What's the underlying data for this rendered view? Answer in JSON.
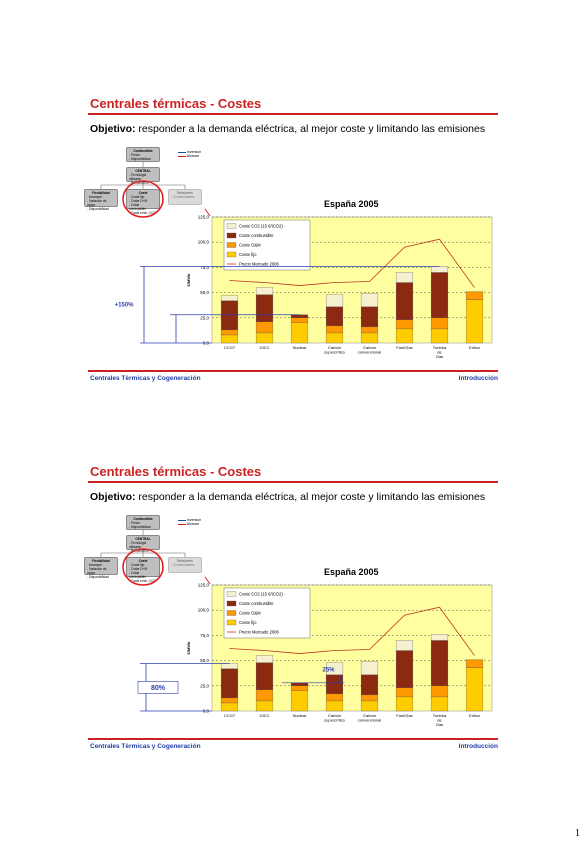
{
  "slides": [
    {
      "title": "Centrales térmicas - Costes",
      "objective_label": "Objetivo:",
      "objective_text": " responder a la demanda eléctrica, al mejor coste y limitando las emisiones",
      "footer_left": "Centrales Térmicas y Cogeneración",
      "footer_right": "Introducción",
      "annotation": "+150%",
      "diagram": {
        "boxes": [
          {
            "title": "Combustible",
            "lines": [
              "- Precio",
              "- Disponibilidad"
            ]
          },
          {
            "title": "CENTRAL",
            "lines": [
              "- Tecnología utilizada",
              "- Rendimiento"
            ]
          },
          {
            "title": "Flexibilidad",
            "lines": [
              "- Arranque",
              "- Variación de carga",
              "- Disponibilidad"
            ]
          },
          {
            "title": "Coste",
            "lines": [
              "- Coste fijo",
              "- Coste O+M",
              "- Coste combustible",
              "- Coste emis. CO2"
            ]
          },
          {
            "title": "Emisiones",
            "lines": [
              "- Contaminantes"
            ]
          }
        ],
        "legend": [
          "Inversión",
          "Alcance"
        ]
      },
      "chart_data": {
        "type": "bar",
        "title": "España 2005",
        "ylabel": "€/MWh",
        "ylim": [
          0,
          125
        ],
        "yticks": [
          "0,0",
          "25,0",
          "50,0",
          "75,0",
          "100,0",
          "125,0"
        ],
        "categories": [
          "CCGT",
          "GICC",
          "Nuclear",
          "Carbón supercrítico",
          "Carbón convencional",
          "Fuel/Gas",
          "Turbina de Gas",
          "Eólico"
        ],
        "series": [
          {
            "name": "Coste CO2 (15 €/tCO2)",
            "color": "#f5f0d0",
            "values": [
              5,
              7,
              0,
              12,
              13,
              10,
              6,
              0
            ]
          },
          {
            "name": "Coste combustible",
            "color": "#8b2a10",
            "values": [
              29,
              27,
              3,
              19,
              20,
              37,
              45,
              0
            ]
          },
          {
            "name": "Coste O&M",
            "color": "#ff9900",
            "values": [
              5,
              11,
              5,
              7,
              6,
              9,
              11,
              8
            ]
          },
          {
            "name": "Coste fijo",
            "color": "#ffcc00",
            "values": [
              8,
              10,
              20,
              10,
              10,
              14,
              14,
              43
            ]
          },
          {
            "name": "Precio Mercado 2006",
            "type": "line",
            "color": "#c03020",
            "values": [
              62,
              60,
              57,
              60,
              61,
              95,
              103,
              55
            ]
          }
        ]
      }
    },
    {
      "title": "Centrales térmicas - Costes",
      "objective_label": "Objetivo:",
      "objective_text": " responder a la demanda eléctrica, al mejor coste y limitando las emisiones",
      "footer_left": "Centrales Térmicas y Cogeneración",
      "footer_right": "Introducción",
      "annotation": "80%",
      "annotation2": "25%",
      "diagram": {
        "boxes": [
          {
            "title": "Combustible",
            "lines": [
              "- Precio",
              "- Disponibilidad"
            ]
          },
          {
            "title": "CENTRAL",
            "lines": [
              "- Tecnología utilizada",
              "- Rendimiento"
            ]
          },
          {
            "title": "Flexibilidad",
            "lines": [
              "- Arranque",
              "- Variación de carga",
              "- Disponibilidad"
            ]
          },
          {
            "title": "Coste",
            "lines": [
              "- Coste fijo",
              "- Coste O+M",
              "- Coste combustible",
              "- Coste emis. CO2"
            ]
          },
          {
            "title": "Emisiones",
            "lines": [
              "- Contaminantes"
            ]
          }
        ],
        "legend": [
          "Inversión",
          "Alcance"
        ]
      },
      "chart_data": {
        "type": "bar",
        "title": "España 2005",
        "ylabel": "€/MWh",
        "ylim": [
          0,
          125
        ],
        "yticks": [
          "0,0",
          "25,0",
          "50,0",
          "75,0",
          "100,0",
          "125,0"
        ],
        "categories": [
          "CCGT",
          "GICC",
          "Nuclear",
          "Carbón supercrítico",
          "Carbón convencional",
          "Fuel/Gas",
          "Turbina de Gas",
          "Eólico"
        ],
        "series": [
          {
            "name": "Coste CO2 (15 €/tCO2)",
            "color": "#f5f0d0",
            "values": [
              5,
              7,
              0,
              12,
              13,
              10,
              6,
              0
            ]
          },
          {
            "name": "Coste combustible",
            "color": "#8b2a10",
            "values": [
              29,
              27,
              3,
              19,
              20,
              37,
              45,
              0
            ]
          },
          {
            "name": "Coste O&M",
            "color": "#ff9900",
            "values": [
              5,
              11,
              5,
              7,
              6,
              9,
              11,
              8
            ]
          },
          {
            "name": "Coste fijo",
            "color": "#ffcc00",
            "values": [
              8,
              10,
              20,
              10,
              10,
              14,
              14,
              43
            ]
          },
          {
            "name": "Precio Mercado 2006",
            "type": "line",
            "color": "#c03020",
            "values": [
              62,
              60,
              57,
              60,
              61,
              95,
              103,
              55
            ]
          }
        ]
      }
    }
  ],
  "page_number": "1"
}
